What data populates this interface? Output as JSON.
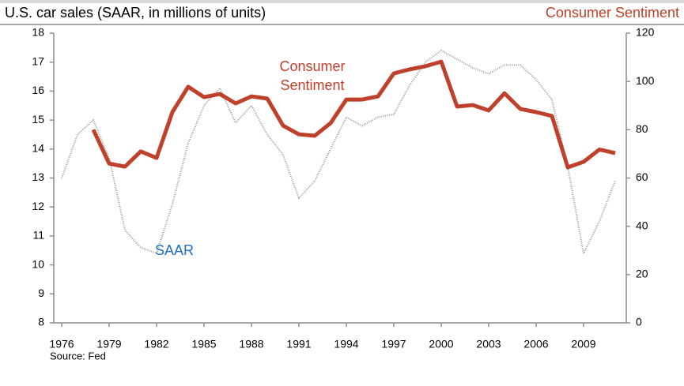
{
  "chart_data": {
    "type": "line",
    "title": "U.S. car sales (SAAR, in millions of units)",
    "y2label": "Consumer Sentiment",
    "source": "Source: Fed",
    "xlim": [
      1975.5,
      2011.7
    ],
    "xticks": [
      1976,
      1979,
      1982,
      1985,
      1988,
      1991,
      1994,
      1997,
      2000,
      2003,
      2006,
      2009
    ],
    "ylim": [
      8,
      18
    ],
    "yticks": [
      8,
      9,
      10,
      11,
      12,
      13,
      14,
      15,
      16,
      17,
      18
    ],
    "y2lim": [
      0,
      120
    ],
    "y2ticks": [
      0,
      20,
      40,
      60,
      80,
      100,
      120
    ],
    "series": [
      {
        "name": "SAAR",
        "color": "#9a9a9a",
        "label_color": "#1f6fc5",
        "axis": "y",
        "dashed": true,
        "x": [
          1976,
          1977,
          1978,
          1979,
          1980,
          1981,
          1982,
          1983,
          1984,
          1985,
          1986,
          1987,
          1988,
          1989,
          1990,
          1991,
          1992,
          1993,
          1994,
          1995,
          1996,
          1997,
          1998,
          1999,
          2000,
          2001,
          2002,
          2003,
          2004,
          2005,
          2006,
          2007,
          2008,
          2009,
          2010,
          2011
        ],
        "values": [
          13.0,
          14.5,
          15.0,
          13.7,
          11.2,
          10.6,
          10.4,
          12.1,
          14.2,
          15.5,
          16.1,
          14.9,
          15.5,
          14.5,
          13.8,
          12.3,
          12.9,
          14.0,
          15.1,
          14.8,
          15.1,
          15.2,
          16.2,
          17.0,
          17.4,
          17.1,
          16.8,
          16.6,
          16.9,
          16.9,
          16.4,
          15.7,
          13.4,
          10.4,
          11.5,
          12.9
        ]
      },
      {
        "name": "Consumer Sentiment",
        "color": "#c0412b",
        "label_color": "#c0412b",
        "axis": "y2",
        "dashed": false,
        "x": [
          1978,
          1979,
          1980,
          1981,
          1982,
          1983,
          1984,
          1985,
          1986,
          1987,
          1988,
          1989,
          1990,
          1991,
          1992,
          1993,
          1994,
          1995,
          1996,
          1997,
          1998,
          1999,
          2000,
          2001,
          2002,
          2003,
          2004,
          2005,
          2006,
          2007,
          2008,
          2009,
          2010,
          2011
        ],
        "values": [
          80,
          66,
          64.7,
          71,
          68.3,
          87.3,
          97.8,
          93.5,
          94.8,
          90.9,
          93.8,
          92.9,
          81.7,
          78.1,
          77.5,
          82.7,
          92.5,
          92.5,
          93.8,
          103.3,
          105,
          106.3,
          108.2,
          89.6,
          90.2,
          88,
          95.1,
          88.6,
          87.3,
          85.7,
          64.4,
          66.7,
          71.8,
          70.3
        ]
      }
    ]
  }
}
